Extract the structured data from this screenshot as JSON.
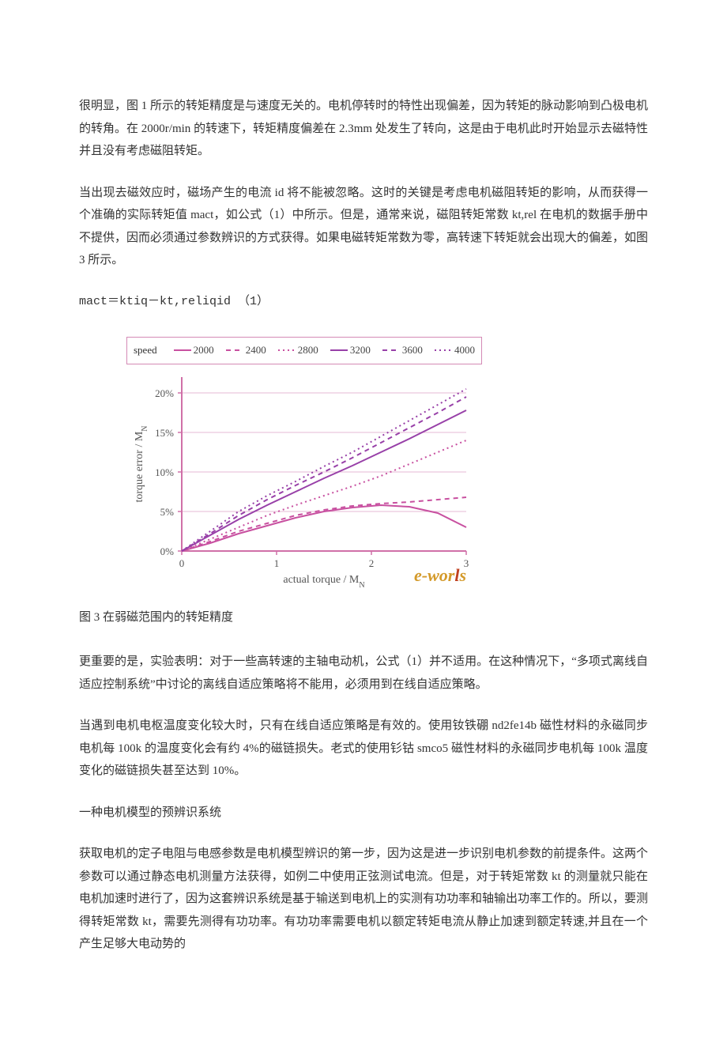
{
  "paragraphs": {
    "p1": "很明显，图 1 所示的转矩精度是与速度无关的。电机停转时的特性出现偏差，因为转矩的脉动影响到凸极电机的转角。在 2000r/min 的转速下，转矩精度偏差在 2.3mm 处发生了转向，这是由于电机此时开始显示去磁特性并且没有考虑磁阻转矩。",
    "p2": "当出现去磁效应时，磁场产生的电流 id 将不能被忽略。这时的关键是考虑电机磁阻转矩的影响，从而获得一个准确的实际转矩值 mact，如公式（1）中所示。但是，通常来说，磁阻转矩常数 kt,rel 在电机的数据手册中不提供，因而必须通过参数辨识的方式获得。如果电磁转矩常数为零，高转速下转矩就会出现大的偏差，如图 3 所示。",
    "formula": "mact＝ktiq－kt,reliqid    （1）",
    "caption": "图 3 在弱磁范围内的转矩精度",
    "p3": "更重要的是，实验表明：对于一些高转速的主轴电动机，公式（1）并不适用。在这种情况下，“多项式离线自适应控制系统”中讨论的离线自适应策略将不能用，必须用到在线自适应策略。",
    "p4": "当遇到电机电枢温度变化较大时，只有在线自适应策略是有效的。使用钕铁硼 nd2fe14b 磁性材料的永磁同步电机每 100k 的温度变化会有约 4%的磁链损失。老式的使用钐钴 smco5 磁性材料的永磁同步电机每 100k 温度变化的磁链损失甚至达到 10%。",
    "h1": "一种电机模型的预辨识系统",
    "p5": "获取电机的定子电阻与电感参数是电机模型辨识的第一步，因为这是进一步识别电机参数的前提条件。这两个参数可以通过静态电机测量方法获得，如例二中使用正弦测试电流。但是，对于转矩常数 kt 的测量就只能在电机加速时进行了，因为这套辨识系统是基于输送到电机上的实测有功功率和轴输出功率工作的。所以，要测得转矩常数 kt，需要先测得有功功率。有功功率需要电机以额定转矩电流从静止加速到额定转速,并且在一个产生足够大电动势的"
  },
  "chart": {
    "type": "line",
    "legend_title": "speed",
    "x_label": "actual torque / M",
    "x_label_sub": "N",
    "y_label": "torque error / M",
    "y_label_sub": "N",
    "xlim": [
      0,
      3
    ],
    "ylim": [
      0,
      0.22
    ],
    "x_ticks": [
      0,
      1,
      2,
      3
    ],
    "x_tick_labels": [
      "0",
      "1",
      "2",
      "3"
    ],
    "y_ticks": [
      0,
      0.05,
      0.1,
      0.15,
      0.2
    ],
    "y_tick_labels": [
      "0%",
      "5%",
      "10%",
      "15%",
      "20%"
    ],
    "background_color": "#ffffff",
    "axis_color": "#d070a8",
    "grid_color": "#e6b8d4",
    "tick_font_size": 13,
    "label_font_size": 14,
    "legend_font_size": 13,
    "line_width": 2,
    "series": [
      {
        "name": "2000",
        "color": "#c850a0",
        "dash": "none",
        "x": [
          0,
          0.3,
          0.6,
          0.9,
          1.2,
          1.5,
          1.8,
          2.1,
          2.4,
          2.7,
          3.0
        ],
        "y": [
          0,
          0.01,
          0.022,
          0.032,
          0.042,
          0.05,
          0.055,
          0.058,
          0.056,
          0.048,
          0.03
        ]
      },
      {
        "name": "2400",
        "color": "#c850a0",
        "dash": "6,5",
        "x": [
          0,
          0.3,
          0.6,
          0.9,
          1.2,
          1.5,
          1.8,
          2.1,
          2.4,
          2.7,
          3.0
        ],
        "y": [
          0,
          0.012,
          0.025,
          0.035,
          0.045,
          0.052,
          0.057,
          0.06,
          0.062,
          0.065,
          0.068
        ]
      },
      {
        "name": "2800",
        "color": "#c850a0",
        "dash": "2,4",
        "x": [
          0,
          0.3,
          0.6,
          0.9,
          1.2,
          1.5,
          1.8,
          2.1,
          2.4,
          2.7,
          3.0
        ],
        "y": [
          0,
          0.015,
          0.03,
          0.045,
          0.058,
          0.07,
          0.082,
          0.095,
          0.11,
          0.125,
          0.14
        ]
      },
      {
        "name": "3200",
        "color": "#9840a8",
        "dash": "none",
        "x": [
          0,
          0.3,
          0.6,
          0.9,
          1.2,
          1.5,
          1.8,
          2.1,
          2.4,
          2.7,
          3.0
        ],
        "y": [
          0,
          0.02,
          0.04,
          0.058,
          0.075,
          0.092,
          0.108,
          0.125,
          0.142,
          0.16,
          0.178
        ]
      },
      {
        "name": "3600",
        "color": "#9840a8",
        "dash": "6,5",
        "x": [
          0,
          0.3,
          0.6,
          0.9,
          1.2,
          1.5,
          1.8,
          2.1,
          2.4,
          2.7,
          3.0
        ],
        "y": [
          0,
          0.022,
          0.045,
          0.065,
          0.083,
          0.1,
          0.118,
          0.137,
          0.156,
          0.175,
          0.195
        ]
      },
      {
        "name": "4000",
        "color": "#9840a8",
        "dash": "2,4",
        "x": [
          0,
          0.3,
          0.6,
          0.9,
          1.2,
          1.5,
          1.8,
          2.1,
          2.4,
          2.7,
          3.0
        ],
        "y": [
          0,
          0.025,
          0.05,
          0.07,
          0.088,
          0.107,
          0.125,
          0.145,
          0.165,
          0.185,
          0.205
        ]
      }
    ],
    "watermark": {
      "text_left": "e-",
      "text_mid": "wor",
      "text_right": "s",
      "accent": "l",
      "color_main": "#d49a2a",
      "color_accent": "#c04020"
    }
  }
}
